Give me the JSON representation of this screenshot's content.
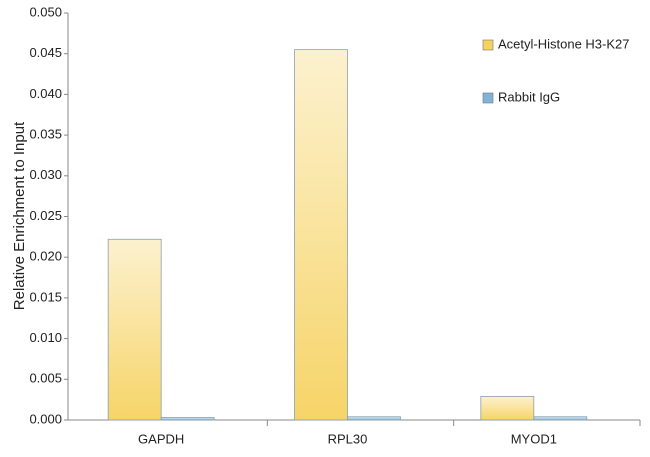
{
  "chart_data": {
    "type": "bar",
    "y_label": "Relative Enrichment to Input",
    "categories": [
      "GAPDH",
      "RPL30",
      "MYOD1"
    ],
    "series": [
      {
        "name": "Acetyl-Histone H3-K27",
        "color": "#f6d260",
        "values": [
          0.0222,
          0.0455,
          0.0029
        ]
      },
      {
        "name": "Rabbit IgG",
        "color": "#7fb4d8",
        "values": [
          0.0003,
          0.0004,
          0.0004
        ]
      }
    ],
    "ylim": [
      0,
      0.05
    ],
    "yticks": [
      {
        "value": 0,
        "label": "0.000"
      },
      0.005,
      {
        "value": 0.01,
        "label": "0.010"
      },
      0.015,
      {
        "value": 0.02,
        "label": "0.020"
      },
      0.025,
      {
        "value": 0.03,
        "label": "0.030"
      },
      0.035,
      {
        "value": 0.04,
        "label": "0.040"
      },
      0.045,
      {
        "value": 0.05,
        "label": "0.050"
      }
    ],
    "legend": "top-right"
  }
}
